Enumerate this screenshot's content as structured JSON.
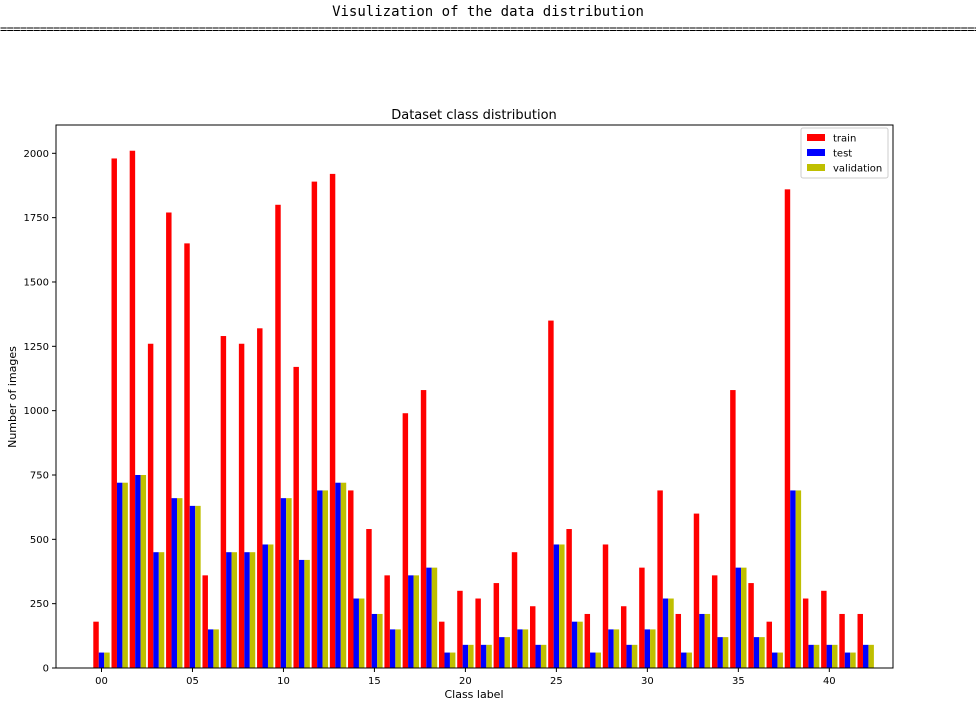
{
  "console": {
    "title": "Visulization of the data distribution",
    "separator": "=============================================================================================================================================================="
  },
  "chart_data": {
    "type": "bar",
    "title": "Dataset class distribution",
    "xlabel": "Class label",
    "ylabel": "Number of images",
    "xlim": [
      -2.5,
      43.5
    ],
    "ylim": [
      0,
      2110
    ],
    "xticks": [
      0,
      5,
      10,
      15,
      20,
      25,
      30,
      35,
      40
    ],
    "xtick_labels": [
      "00",
      "05",
      "10",
      "15",
      "20",
      "25",
      "30",
      "35",
      "40"
    ],
    "yticks": [
      0,
      250,
      500,
      750,
      1000,
      1250,
      1500,
      1750,
      2000
    ],
    "grid": false,
    "legend_position": "top-right",
    "categories": [
      0,
      1,
      2,
      3,
      4,
      5,
      6,
      7,
      8,
      9,
      10,
      11,
      12,
      13,
      14,
      15,
      16,
      17,
      18,
      19,
      20,
      21,
      22,
      23,
      24,
      25,
      26,
      27,
      28,
      29,
      30,
      31,
      32,
      33,
      34,
      35,
      36,
      37,
      38,
      39,
      40,
      41,
      42
    ],
    "series": [
      {
        "name": "train",
        "color": "#ff0000",
        "values": [
          180,
          1980,
          2010,
          1260,
          1770,
          1650,
          360,
          1290,
          1260,
          1320,
          1800,
          1170,
          1890,
          1920,
          690,
          540,
          360,
          990,
          1080,
          180,
          300,
          270,
          330,
          450,
          240,
          1350,
          540,
          210,
          480,
          240,
          390,
          690,
          210,
          600,
          360,
          1080,
          330,
          180,
          1860,
          270,
          300,
          210,
          210
        ]
      },
      {
        "name": "test",
        "color": "#0000ff",
        "values": [
          60,
          720,
          750,
          450,
          660,
          630,
          150,
          450,
          450,
          480,
          660,
          420,
          690,
          720,
          270,
          210,
          150,
          360,
          390,
          60,
          90,
          90,
          120,
          150,
          90,
          480,
          180,
          60,
          150,
          90,
          150,
          270,
          60,
          210,
          120,
          390,
          120,
          60,
          690,
          90,
          90,
          60,
          90
        ]
      },
      {
        "name": "validation",
        "color": "#bfbf00",
        "values": [
          60,
          720,
          750,
          450,
          660,
          630,
          150,
          450,
          450,
          480,
          660,
          420,
          690,
          720,
          270,
          210,
          150,
          360,
          390,
          60,
          90,
          90,
          120,
          150,
          90,
          480,
          180,
          60,
          150,
          90,
          150,
          270,
          60,
          210,
          120,
          390,
          120,
          60,
          690,
          90,
          90,
          60,
          90
        ]
      }
    ]
  }
}
